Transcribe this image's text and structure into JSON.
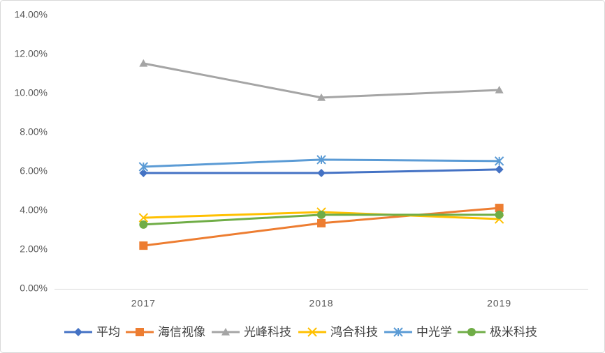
{
  "chart_data": {
    "type": "line",
    "categories": [
      "2017",
      "2018",
      "2019"
    ],
    "series": [
      {
        "name": "平均",
        "color": "#4472c4",
        "marker": "diamond",
        "values": [
          5.93,
          5.93,
          6.11
        ]
      },
      {
        "name": "海信视像",
        "color": "#ed7d31",
        "marker": "square",
        "values": [
          2.21,
          3.36,
          4.14
        ]
      },
      {
        "name": "光峰科技",
        "color": "#a5a5a5",
        "marker": "triangle",
        "values": [
          11.54,
          9.79,
          10.18
        ]
      },
      {
        "name": "鸿合科技",
        "color": "#ffc000",
        "marker": "x",
        "values": [
          3.64,
          3.93,
          3.57
        ]
      },
      {
        "name": "中光学",
        "color": "#5b9bd5",
        "marker": "asterisk",
        "values": [
          6.25,
          6.61,
          6.54
        ]
      },
      {
        "name": "极米科技",
        "color": "#70ad47",
        "marker": "circle",
        "values": [
          3.29,
          3.79,
          3.79
        ]
      }
    ],
    "ylim": [
      0,
      14
    ],
    "yticks": [
      {
        "value": 0,
        "label": "0.00%"
      },
      {
        "value": 2,
        "label": "2.00%"
      },
      {
        "value": 4,
        "label": "4.00%"
      },
      {
        "value": 6,
        "label": "6.00%"
      },
      {
        "value": 8,
        "label": "8.00%"
      },
      {
        "value": 10,
        "label": "10.00%"
      },
      {
        "value": 12,
        "label": "12.00%"
      },
      {
        "value": 14,
        "label": "14.00%"
      }
    ],
    "grid": false,
    "legend": "bottom"
  }
}
